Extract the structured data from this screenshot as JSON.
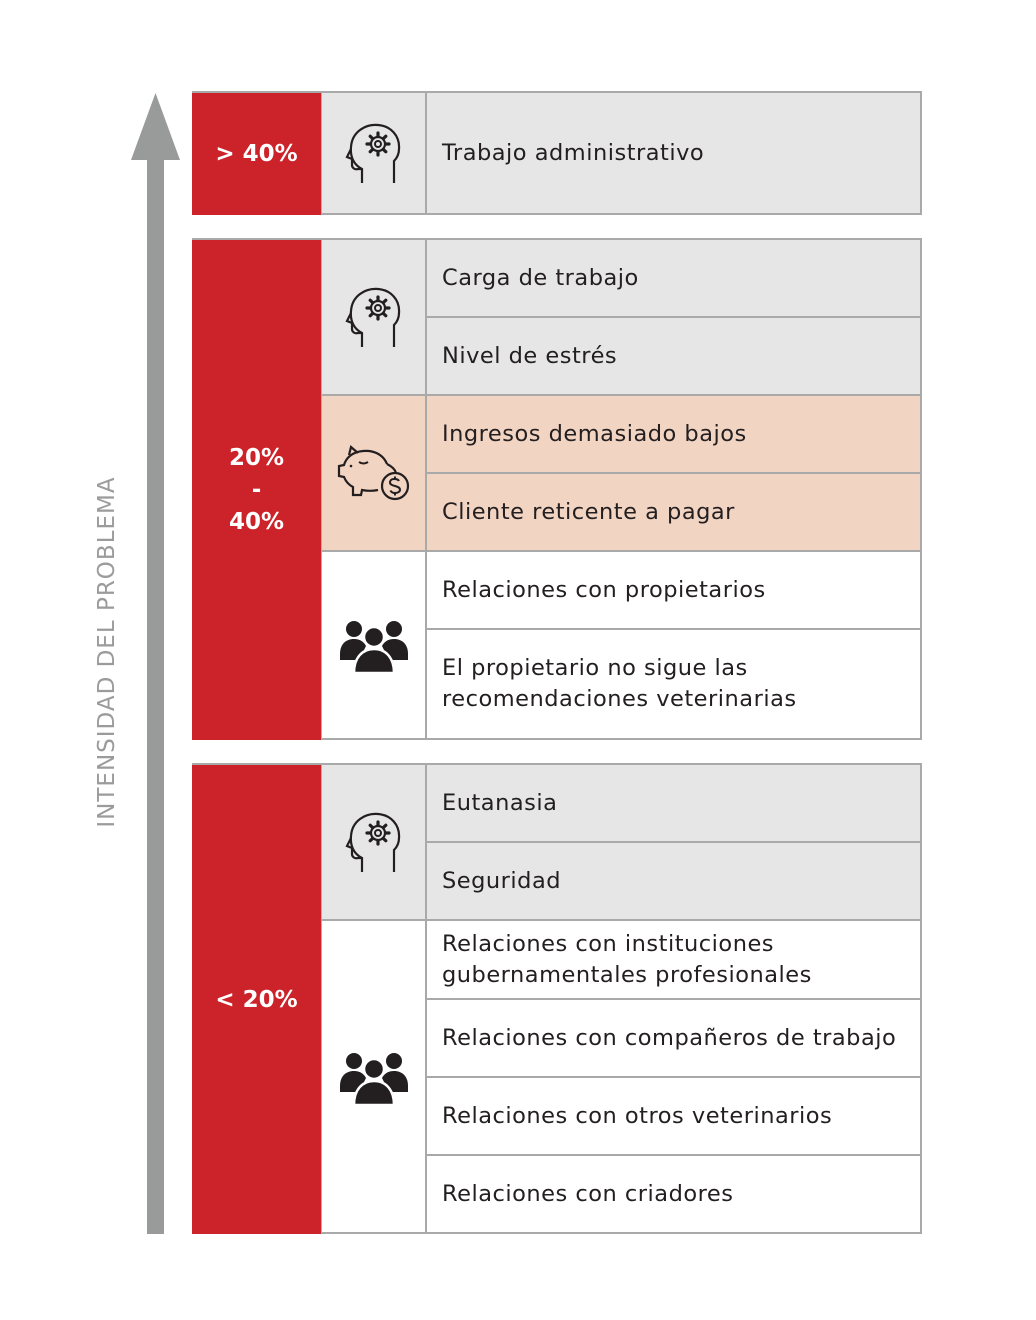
{
  "axis": {
    "label": "INTENSIDAD DEL PROBLEMA",
    "color": "#999a9a"
  },
  "colors": {
    "red": "#cc2229",
    "gray_row": "#e6e6e6",
    "peach_row": "#f2d4c3",
    "border": "#a9a9a9"
  },
  "groups": [
    {
      "label": "> 40%",
      "sections": [
        {
          "icon": "brain-gear-icon",
          "rows": [
            "Trabajo administrativo"
          ]
        }
      ]
    },
    {
      "label": "20%\n-\n40%",
      "sections": [
        {
          "icon": "brain-gear-icon",
          "rows": [
            "Carga de trabajo",
            "Nivel de estrés"
          ]
        },
        {
          "icon": "piggy-bank-icon",
          "rows": [
            "Ingresos demasiado bajos",
            "Cliente reticente a pagar"
          ]
        },
        {
          "icon": "people-group-icon",
          "rows": [
            "Relaciones con propietarios",
            "El propietario no sigue las\nrecomendaciones veterinarias"
          ]
        }
      ]
    },
    {
      "label": "< 20%",
      "sections": [
        {
          "icon": "brain-gear-icon",
          "rows": [
            "Eutanasia",
            "Seguridad"
          ]
        },
        {
          "icon": "people-group-icon",
          "rows": [
            "Relaciones con instituciones\ngubernamentales profesionales",
            "Relaciones con compañeros de trabajo",
            "Relaciones con otros veterinarios",
            "Relaciones con criadores"
          ]
        }
      ]
    }
  ]
}
